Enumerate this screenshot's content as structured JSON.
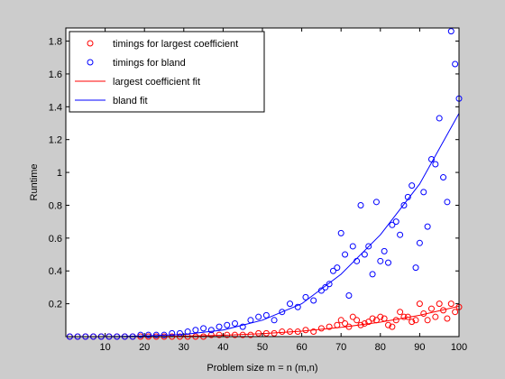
{
  "chart_data": {
    "type": "scatter",
    "title": "",
    "xlabel": "Problem size m = n (m,n)",
    "ylabel": "Runtime",
    "xlim": [
      0,
      100
    ],
    "ylim": [
      0,
      1.88
    ],
    "xticks": [
      10,
      20,
      30,
      40,
      50,
      60,
      70,
      80,
      90,
      100
    ],
    "yticks": [
      0.2,
      0.4,
      0.6,
      0.8,
      1,
      1.2,
      1.4,
      1.6,
      1.8
    ],
    "grid": false,
    "legend_position": "top-left",
    "background_color": "#cccccc",
    "axes_color": "#ffffff",
    "series": [
      {
        "name": "timings for largest coefficient",
        "kind": "scatter",
        "marker": "circle",
        "color": "#ff0000",
        "points": [
          [
            1,
            0.0
          ],
          [
            3,
            0.0
          ],
          [
            5,
            0.0
          ],
          [
            7,
            0.0
          ],
          [
            9,
            0.0
          ],
          [
            11,
            0.0
          ],
          [
            13,
            0.0
          ],
          [
            15,
            0.0
          ],
          [
            17,
            0.0
          ],
          [
            19,
            0.0
          ],
          [
            21,
            0.0
          ],
          [
            23,
            0.0
          ],
          [
            25,
            0.0
          ],
          [
            27,
            0.0
          ],
          [
            29,
            0.0
          ],
          [
            31,
            0.0
          ],
          [
            33,
            0.0
          ],
          [
            35,
            0.0
          ],
          [
            37,
            0.01
          ],
          [
            39,
            0.01
          ],
          [
            41,
            0.01
          ],
          [
            43,
            0.01
          ],
          [
            45,
            0.01
          ],
          [
            47,
            0.01
          ],
          [
            49,
            0.02
          ],
          [
            51,
            0.02
          ],
          [
            53,
            0.02
          ],
          [
            55,
            0.03
          ],
          [
            57,
            0.03
          ],
          [
            59,
            0.03
          ],
          [
            61,
            0.04
          ],
          [
            63,
            0.03
          ],
          [
            65,
            0.05
          ],
          [
            67,
            0.06
          ],
          [
            69,
            0.07
          ],
          [
            70,
            0.1
          ],
          [
            71,
            0.08
          ],
          [
            72,
            0.06
          ],
          [
            73,
            0.12
          ],
          [
            74,
            0.1
          ],
          [
            75,
            0.07
          ],
          [
            76,
            0.08
          ],
          [
            77,
            0.09
          ],
          [
            78,
            0.11
          ],
          [
            79,
            0.1
          ],
          [
            80,
            0.12
          ],
          [
            81,
            0.11
          ],
          [
            82,
            0.07
          ],
          [
            83,
            0.06
          ],
          [
            84,
            0.1
          ],
          [
            85,
            0.15
          ],
          [
            86,
            0.12
          ],
          [
            87,
            0.12
          ],
          [
            88,
            0.09
          ],
          [
            89,
            0.1
          ],
          [
            90,
            0.2
          ],
          [
            91,
            0.14
          ],
          [
            92,
            0.1
          ],
          [
            93,
            0.17
          ],
          [
            94,
            0.12
          ],
          [
            95,
            0.2
          ],
          [
            96,
            0.16
          ],
          [
            97,
            0.11
          ],
          [
            98,
            0.2
          ],
          [
            99,
            0.15
          ],
          [
            100,
            0.18
          ]
        ]
      },
      {
        "name": "timings for bland",
        "kind": "scatter",
        "marker": "circle",
        "color": "#0000ff",
        "points": [
          [
            1,
            0.0
          ],
          [
            3,
            0.0
          ],
          [
            5,
            0.0
          ],
          [
            7,
            0.0
          ],
          [
            9,
            0.0
          ],
          [
            11,
            0.0
          ],
          [
            13,
            0.0
          ],
          [
            15,
            0.0
          ],
          [
            17,
            0.0
          ],
          [
            19,
            0.01
          ],
          [
            21,
            0.01
          ],
          [
            23,
            0.01
          ],
          [
            25,
            0.01
          ],
          [
            27,
            0.02
          ],
          [
            29,
            0.02
          ],
          [
            31,
            0.03
          ],
          [
            33,
            0.04
          ],
          [
            35,
            0.05
          ],
          [
            37,
            0.04
          ],
          [
            39,
            0.06
          ],
          [
            41,
            0.07
          ],
          [
            43,
            0.08
          ],
          [
            45,
            0.06
          ],
          [
            47,
            0.1
          ],
          [
            49,
            0.12
          ],
          [
            51,
            0.13
          ],
          [
            53,
            0.1
          ],
          [
            55,
            0.15
          ],
          [
            57,
            0.2
          ],
          [
            59,
            0.18
          ],
          [
            61,
            0.24
          ],
          [
            63,
            0.22
          ],
          [
            65,
            0.28
          ],
          [
            66,
            0.3
          ],
          [
            67,
            0.32
          ],
          [
            68,
            0.4
          ],
          [
            69,
            0.42
          ],
          [
            70,
            0.63
          ],
          [
            71,
            0.5
          ],
          [
            72,
            0.25
          ],
          [
            73,
            0.55
          ],
          [
            74,
            0.46
          ],
          [
            75,
            0.8
          ],
          [
            76,
            0.5
          ],
          [
            77,
            0.55
          ],
          [
            78,
            0.38
          ],
          [
            79,
            0.82
          ],
          [
            80,
            0.46
          ],
          [
            81,
            0.52
          ],
          [
            82,
            0.45
          ],
          [
            83,
            0.68
          ],
          [
            84,
            0.7
          ],
          [
            85,
            0.62
          ],
          [
            86,
            0.8
          ],
          [
            87,
            0.85
          ],
          [
            88,
            0.92
          ],
          [
            89,
            0.42
          ],
          [
            90,
            0.57
          ],
          [
            91,
            0.88
          ],
          [
            92,
            0.67
          ],
          [
            93,
            1.08
          ],
          [
            94,
            1.05
          ],
          [
            95,
            1.33
          ],
          [
            96,
            0.97
          ],
          [
            97,
            0.82
          ],
          [
            98,
            1.86
          ],
          [
            99,
            1.66
          ],
          [
            100,
            1.45
          ]
        ]
      },
      {
        "name": "largest coefficient fit",
        "kind": "line",
        "color": "#ff0000",
        "points": [
          [
            0,
            0.0
          ],
          [
            10,
            0.0
          ],
          [
            20,
            0.0
          ],
          [
            30,
            0.003
          ],
          [
            40,
            0.008
          ],
          [
            50,
            0.018
          ],
          [
            60,
            0.033
          ],
          [
            70,
            0.056
          ],
          [
            80,
            0.088
          ],
          [
            90,
            0.13
          ],
          [
            100,
            0.185
          ]
        ]
      },
      {
        "name": "bland fit",
        "kind": "line",
        "color": "#0000ff",
        "points": [
          [
            0,
            0.0
          ],
          [
            10,
            0.0
          ],
          [
            20,
            0.004
          ],
          [
            30,
            0.013
          ],
          [
            40,
            0.04
          ],
          [
            50,
            0.1
          ],
          [
            60,
            0.2
          ],
          [
            70,
            0.38
          ],
          [
            80,
            0.62
          ],
          [
            90,
            0.93
          ],
          [
            100,
            1.36
          ]
        ]
      }
    ]
  }
}
